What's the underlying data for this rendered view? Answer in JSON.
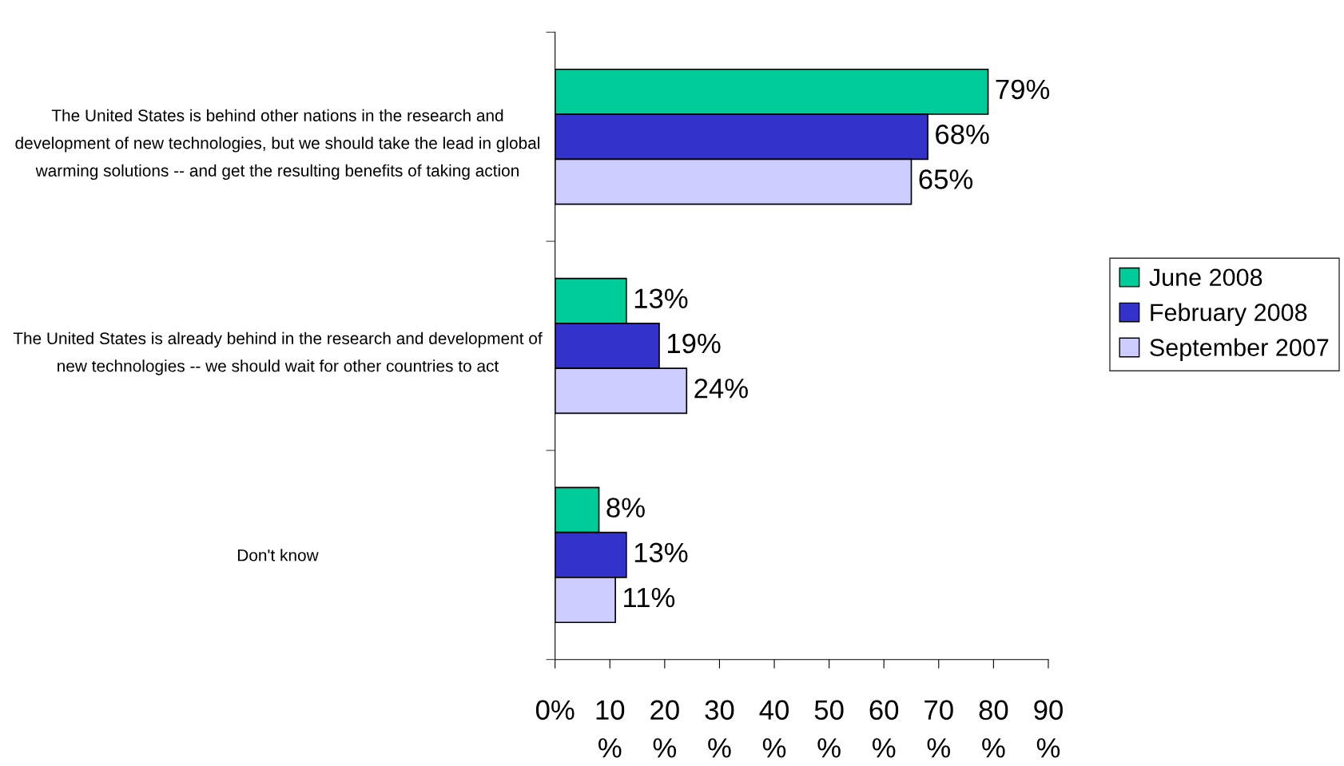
{
  "chart_data": {
    "type": "bar",
    "orientation": "horizontal",
    "categories": [
      "The United States is behind other nations in the research and\ndevelopment of new technologies, but we should take the lead in global\nwarming solutions -- and get the resulting benefits of taking action",
      "The United States is already behind in the research and development of\nnew technologies -- we should wait for other countries to act",
      "Don't know"
    ],
    "series": [
      {
        "name": "June 2008",
        "color": "#00cc99",
        "values": [
          79,
          13,
          8
        ],
        "value_labels": [
          "79%",
          "13%",
          "8%"
        ]
      },
      {
        "name": "February 2008",
        "color": "#3333cc",
        "values": [
          68,
          19,
          13
        ],
        "value_labels": [
          "68%",
          "19%",
          "13%"
        ]
      },
      {
        "name": "September 2007",
        "color": "#ccccff",
        "values": [
          65,
          24,
          11
        ],
        "value_labels": [
          "65%",
          "24%",
          "11%"
        ]
      }
    ],
    "xlim": [
      0,
      90
    ],
    "xticks": [
      {
        "value": 0,
        "label": "0%"
      },
      {
        "value": 10,
        "label": "10\n%"
      },
      {
        "value": 20,
        "label": "20\n%"
      },
      {
        "value": 30,
        "label": "30\n%"
      },
      {
        "value": 40,
        "label": "40\n%"
      },
      {
        "value": 50,
        "label": "50\n%"
      },
      {
        "value": 60,
        "label": "60\n%"
      },
      {
        "value": 70,
        "label": "70\n%"
      },
      {
        "value": 80,
        "label": "80\n%"
      },
      {
        "value": 90,
        "label": "90\n%"
      }
    ],
    "grid": false,
    "legend": "right"
  }
}
